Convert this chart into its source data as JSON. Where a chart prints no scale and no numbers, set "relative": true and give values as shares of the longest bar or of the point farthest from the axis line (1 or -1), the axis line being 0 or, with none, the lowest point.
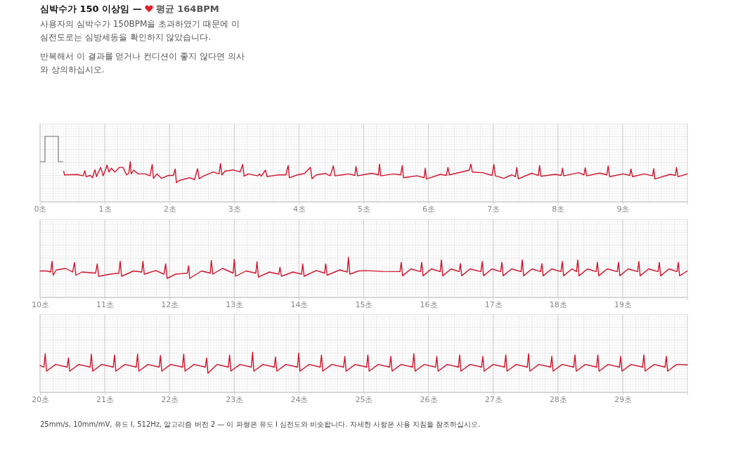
{
  "chart_data": [
    {
      "type": "line",
      "title": "심박수가 150 이상임 —",
      "subtitle": "평균 164BPM",
      "annotations": [
        "사용자의 심박수가 150BPM을 초과하였기 때문에 이 심전도로는 심방세동을 확인하지 않았습니다.",
        "반복해서 이 결과를 얻거나 컨디션이 좋지 않다면 의사와 상의하십시오."
      ],
      "x": [
        0.366,
        0.377,
        0.575,
        0.666,
        0.691,
        0.713,
        0.775,
        0.811,
        0.847,
        0.873,
        0.901,
        0.937,
        0.974,
        1.01,
        1.035,
        1.064,
        1.1,
        1.155,
        1.226,
        1.281,
        1.335,
        1.371,
        1.393,
        1.408,
        1.444,
        1.516,
        1.625,
        1.697,
        1.733,
        1.751,
        1.806,
        1.878,
        1.987,
        2.059,
        2.088,
        2.106,
        2.15,
        2.313,
        2.386,
        2.433,
        2.458,
        2.53,
        2.675,
        2.765,
        2.787,
        2.809,
        2.856,
        2.982,
        3.09,
        3.13,
        3.152,
        3.217,
        3.362,
        3.391,
        3.417,
        3.482,
        3.507,
        3.58,
        3.688,
        3.797,
        3.833,
        3.851,
        3.977,
        4.086,
        4.176,
        4.201,
        4.267,
        4.41,
        4.483,
        4.53,
        4.555,
        4.664,
        4.772,
        4.863,
        4.88,
        4.906,
        5.027,
        5.135,
        5.226,
        5.244,
        5.262,
        5.461,
        5.57,
        5.595,
        5.614,
        5.823,
        5.932,
        5.95,
        5.968,
        6.185,
        6.276,
        6.301,
        6.323,
        6.565,
        6.63,
        6.655,
        6.677,
        6.837,
        6.981,
        7.01,
        7.032,
        7.162,
        7.289,
        7.343,
        7.365,
        7.387,
        7.596,
        7.697,
        7.716,
        7.737,
        7.958,
        8.052,
        8.07,
        8.09,
        8.321,
        8.402,
        8.422,
        8.443,
        8.646,
        8.754,
        8.776,
        8.798,
        9.008,
        9.109,
        9.127,
        9.153,
        9.334,
        9.461,
        9.479,
        9.497,
        9.734,
        9.814,
        9.832,
        9.854,
        10.0
      ],
      "values": [
        0.54,
        0.375,
        0.39,
        0.33,
        0.57,
        0.29,
        0.35,
        0.24,
        0.62,
        0.29,
        0.51,
        0.73,
        0.33,
        0.6,
        0.84,
        0.51,
        0.69,
        0.51,
        0.73,
        0.73,
        0.375,
        0.46,
        1.0,
        0.42,
        0.6,
        0.42,
        0.42,
        0.33,
        0.87,
        0.21,
        0.42,
        0.21,
        0.35,
        0.35,
        0.65,
        0.0,
        0.11,
        0.24,
        0.15,
        0.67,
        0.19,
        0.33,
        0.51,
        0.42,
        0.91,
        0.375,
        0.55,
        0.61,
        0.51,
        0.87,
        0.31,
        0.42,
        0.33,
        0.42,
        0.31,
        0.6,
        0.29,
        0.33,
        0.375,
        0.375,
        0.82,
        0.24,
        0.375,
        0.44,
        0.73,
        0.19,
        0.375,
        0.44,
        0.33,
        0.8,
        0.33,
        0.375,
        0.42,
        0.35,
        0.78,
        0.33,
        0.4,
        0.45,
        0.375,
        0.885,
        0.33,
        0.42,
        0.375,
        0.82,
        0.24,
        0.33,
        0.24,
        0.69,
        0.18,
        0.4,
        0.35,
        0.73,
        0.375,
        0.55,
        0.6,
        0.885,
        0.51,
        0.48,
        0.35,
        0.87,
        0.33,
        0.21,
        0.375,
        0.29,
        0.73,
        0.19,
        0.45,
        0.35,
        0.82,
        0.31,
        0.4,
        0.35,
        0.69,
        0.33,
        0.48,
        0.375,
        0.71,
        0.33,
        0.46,
        0.375,
        0.8,
        0.29,
        0.42,
        0.35,
        0.65,
        0.29,
        0.42,
        0.33,
        0.67,
        0.18,
        0.4,
        0.35,
        0.73,
        0.29,
        0.42
      ],
      "color": "#d0142c",
      "relative": true,
      "grid": true,
      "tick_labels": "x",
      "xlim": [
        0,
        10
      ],
      "xticks": [
        {
          "value": 0,
          "label": "0초"
        },
        {
          "value": 1,
          "label": "1초"
        },
        {
          "value": 2,
          "label": "2초"
        },
        {
          "value": 3,
          "label": "3초"
        },
        {
          "value": 4,
          "label": "4초"
        },
        {
          "value": 5,
          "label": "5초"
        },
        {
          "value": 6,
          "label": "6초"
        },
        {
          "value": 7,
          "label": "7초"
        },
        {
          "value": 8,
          "label": "8초"
        },
        {
          "value": 9,
          "label": "9초"
        }
      ]
    },
    {
      "type": "line",
      "x": [
        10.0,
        10.105,
        10.163,
        10.185,
        10.203,
        10.25,
        10.395,
        10.503,
        10.532,
        10.554,
        10.648,
        10.858,
        10.883,
        10.905,
        11.082,
        11.216,
        11.238,
        11.259,
        11.444,
        11.571,
        11.589,
        11.61,
        11.788,
        11.914,
        11.94,
        11.962,
        12.095,
        12.276,
        12.294,
        12.312,
        12.494,
        12.628,
        12.646,
        12.668,
        12.819,
        12.982,
        13.0,
        13.022,
        13.181,
        13.333,
        13.351,
        13.373,
        13.543,
        13.688,
        13.706,
        13.728,
        13.905,
        14.039,
        14.057,
        14.079,
        14.267,
        14.394,
        14.412,
        14.434,
        14.629,
        14.745,
        14.763,
        14.785,
        14.918,
        15.027,
        15.3,
        15.56,
        15.58,
        15.6,
        15.73,
        15.876,
        15.896,
        15.916,
        16.046,
        16.18,
        16.2,
        16.22,
        16.35,
        16.473,
        16.493,
        16.513,
        16.643,
        16.81,
        16.83,
        16.85,
        16.98,
        17.114,
        17.134,
        17.154,
        17.284,
        17.429,
        17.449,
        17.469,
        17.599,
        17.732,
        17.752,
        17.772,
        17.902,
        18.047,
        18.067,
        18.087,
        18.217,
        18.286,
        18.306,
        18.326,
        18.456,
        18.59,
        18.61,
        18.63,
        18.76,
        18.916,
        18.936,
        18.956,
        19.086,
        19.23,
        19.25,
        19.27,
        19.4,
        19.546,
        19.566,
        19.586,
        19.716,
        19.839,
        19.859,
        19.879,
        20.0
      ],
      "values": [
        0.35,
        0.35,
        0.3,
        0.813,
        0.15,
        0.4,
        0.475,
        0.3,
        0.75,
        0.15,
        0.3,
        0.25,
        0.688,
        0.1,
        0.2,
        0.25,
        0.813,
        0.1,
        0.35,
        0.3,
        0.813,
        0.2,
        0.37,
        0.2,
        0.688,
        0.0,
        0.2,
        0.25,
        0.6,
        0.0,
        0.35,
        0.25,
        0.85,
        0.2,
        0.475,
        0.25,
        0.9,
        0.1,
        0.35,
        0.25,
        0.79,
        0.06,
        0.3,
        0.2,
        0.525,
        0.1,
        0.3,
        0.2,
        0.688,
        0.1,
        0.37,
        0.25,
        0.688,
        0.15,
        0.4,
        0.3,
        1.0,
        0.2,
        0.35,
        0.37,
        0.33,
        0.32,
        0.76,
        0.12,
        0.45,
        0.32,
        0.76,
        0.12,
        0.45,
        0.32,
        0.88,
        0.12,
        0.45,
        0.32,
        0.7,
        0.12,
        0.45,
        0.32,
        0.8,
        0.12,
        0.45,
        0.32,
        0.76,
        0.12,
        0.45,
        0.32,
        0.88,
        0.12,
        0.45,
        0.32,
        0.7,
        0.12,
        0.45,
        0.32,
        0.8,
        0.12,
        0.45,
        0.32,
        0.88,
        0.12,
        0.45,
        0.32,
        0.76,
        0.12,
        0.45,
        0.32,
        0.76,
        0.12,
        0.45,
        0.32,
        0.8,
        0.12,
        0.45,
        0.32,
        0.76,
        0.12,
        0.45,
        0.32,
        0.76,
        0.12,
        0.35
      ],
      "color": "#d0142c",
      "relative": true,
      "grid": true,
      "tick_labels": "x",
      "xlim": [
        10,
        20
      ],
      "xticks": [
        {
          "value": 10,
          "label": "10초"
        },
        {
          "value": 11,
          "label": "11초"
        },
        {
          "value": 12,
          "label": "12초"
        },
        {
          "value": 13,
          "label": "13초"
        },
        {
          "value": 14,
          "label": "14초"
        },
        {
          "value": 15,
          "label": "15초"
        },
        {
          "value": 16,
          "label": "16초"
        },
        {
          "value": 17,
          "label": "17초"
        },
        {
          "value": 18,
          "label": "18초"
        },
        {
          "value": 19,
          "label": "19초"
        }
      ]
    },
    {
      "type": "line",
      "annotations": [
        "25mm/s, 10mm/mV, 유도 I, 512Hz, 알고리즘 버전 2 — 이 파형은 유도 I 심전도와 비슷합니다. 자세한 사항은 사용 지침을 참조하십시오."
      ],
      "x": [
        20.0,
        20.06,
        20.08,
        20.1,
        20.24,
        20.418,
        20.438,
        20.458,
        20.598,
        20.773,
        20.793,
        20.813,
        20.953,
        21.131,
        21.151,
        21.171,
        21.311,
        21.486,
        21.506,
        21.526,
        21.666,
        21.84,
        21.86,
        21.88,
        22.02,
        22.199,
        22.219,
        22.239,
        22.379,
        22.553,
        22.573,
        22.593,
        22.733,
        22.908,
        22.928,
        22.948,
        23.088,
        23.263,
        23.283,
        23.303,
        23.443,
        23.617,
        23.637,
        23.657,
        23.797,
        23.976,
        23.996,
        24.016,
        24.156,
        24.327,
        24.347,
        24.367,
        24.507,
        24.688,
        24.708,
        24.728,
        24.868,
        25.044,
        25.064,
        25.084,
        25.224,
        25.398,
        25.418,
        25.438,
        25.578,
        25.754,
        25.774,
        25.794,
        25.934,
        26.109,
        26.129,
        26.149,
        26.289,
        26.462,
        26.482,
        26.502,
        26.642,
        26.82,
        26.84,
        26.86,
        27.0,
        27.174,
        27.194,
        27.214,
        27.354,
        27.526,
        27.546,
        27.566,
        27.706,
        27.885,
        27.905,
        27.925,
        28.065,
        28.243,
        28.263,
        28.283,
        28.423,
        28.596,
        28.616,
        28.636,
        28.776,
        28.949,
        28.969,
        28.989,
        29.129,
        29.307,
        29.327,
        29.347,
        29.487,
        29.654,
        29.674,
        29.694,
        29.834,
        30.0
      ],
      "values": [
        0.37,
        0.29,
        0.93,
        0.1,
        0.42,
        0.29,
        0.73,
        0.1,
        0.42,
        0.29,
        0.907,
        0.1,
        0.42,
        0.29,
        0.867,
        0.1,
        0.42,
        0.29,
        0.907,
        0.1,
        0.42,
        0.29,
        0.84,
        0.1,
        0.42,
        0.29,
        0.907,
        0.1,
        0.42,
        0.29,
        0.73,
        0.0,
        0.42,
        0.29,
        0.867,
        0.1,
        0.42,
        0.29,
        1.0,
        0.1,
        0.42,
        0.29,
        0.773,
        0.1,
        0.42,
        0.29,
        0.96,
        0.1,
        0.42,
        0.29,
        0.867,
        0.1,
        0.42,
        0.29,
        0.8,
        0.1,
        0.42,
        0.29,
        0.87,
        0.1,
        0.42,
        0.29,
        0.8,
        0.1,
        0.42,
        0.29,
        0.93,
        0.1,
        0.42,
        0.29,
        0.8,
        0.1,
        0.42,
        0.29,
        0.87,
        0.1,
        0.42,
        0.29,
        0.8,
        0.1,
        0.42,
        0.29,
        0.87,
        0.1,
        0.42,
        0.29,
        0.93,
        0.1,
        0.42,
        0.29,
        0.8,
        0.1,
        0.42,
        0.29,
        0.87,
        0.1,
        0.42,
        0.29,
        0.87,
        0.1,
        0.42,
        0.29,
        0.8,
        0.1,
        0.42,
        0.29,
        0.87,
        0.1,
        0.42,
        0.29,
        0.8,
        0.1,
        0.42,
        0.4
      ],
      "color": "#d0142c",
      "relative": true,
      "grid": true,
      "tick_labels": "x",
      "xlim": [
        20,
        30
      ],
      "xticks": [
        {
          "value": 20,
          "label": "20초"
        },
        {
          "value": 21,
          "label": "21초"
        },
        {
          "value": 22,
          "label": "22초"
        },
        {
          "value": 23,
          "label": "23초"
        },
        {
          "value": 24,
          "label": "24초"
        },
        {
          "value": 25,
          "label": "25초"
        },
        {
          "value": 26,
          "label": "26초"
        },
        {
          "value": 27,
          "label": "27초"
        },
        {
          "value": 28,
          "label": "28초"
        },
        {
          "value": 29,
          "label": "29초"
        }
      ]
    }
  ]
}
